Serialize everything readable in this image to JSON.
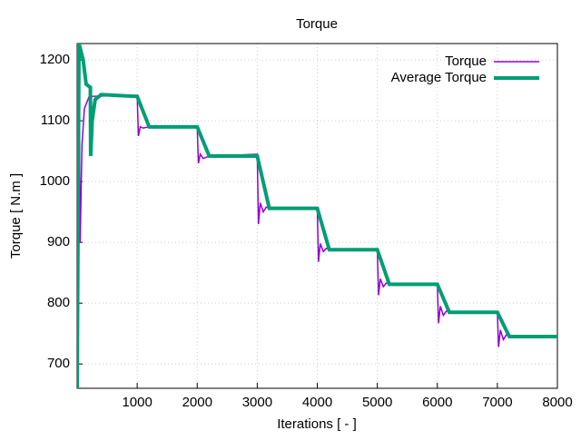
{
  "chart_data": {
    "type": "line",
    "title": "Torque",
    "x_label": "Iterations [ - ]",
    "y_label": "Torque [ N.m ]",
    "xlim": [
      0,
      8000
    ],
    "ylim": [
      660,
      1227
    ],
    "xticks": [
      1000,
      2000,
      3000,
      4000,
      5000,
      6000,
      7000,
      8000
    ],
    "yticks": [
      700,
      800,
      900,
      1000,
      1100,
      1200
    ],
    "grid": true,
    "legend": "top-right",
    "series": [
      {
        "name": "Torque",
        "color": "#9400d3",
        "width": 1.5,
        "x": [
          0,
          30,
          50,
          80,
          120,
          200,
          1000,
          1020,
          1050,
          1100,
          1200,
          2000,
          2020,
          2050,
          2100,
          2200,
          3000,
          3020,
          3050,
          3100,
          3150,
          3300,
          4000,
          4020,
          4050,
          4100,
          4150,
          4300,
          5000,
          5020,
          5050,
          5100,
          5150,
          5300,
          6000,
          6020,
          6050,
          6100,
          6150,
          6300,
          7000,
          7020,
          7050,
          7100,
          7150,
          7300,
          8000
        ],
        "values": [
          660,
          1227,
          900,
          1060,
          1120,
          1140,
          1142,
          1075,
          1090,
          1088,
          1090,
          1090,
          1030,
          1045,
          1038,
          1042,
          1045,
          930,
          965,
          950,
          958,
          956,
          956,
          868,
          898,
          885,
          890,
          888,
          888,
          813,
          840,
          827,
          833,
          831,
          831,
          767,
          795,
          780,
          787,
          785,
          785,
          728,
          756,
          740,
          748,
          745,
          745
        ]
      },
      {
        "name": "Average Torque",
        "color": "#009e73",
        "width": 4,
        "x": [
          0,
          30,
          100,
          150,
          220,
          225,
          250,
          300,
          400,
          1000,
          1200,
          2000,
          2200,
          3000,
          3200,
          4000,
          4200,
          5000,
          5200,
          6000,
          6200,
          7000,
          7200,
          8000
        ],
        "values": [
          660,
          1227,
          1200,
          1160,
          1155,
          1042,
          1100,
          1135,
          1143,
          1140,
          1090,
          1090,
          1042,
          1042,
          956,
          956,
          888,
          888,
          831,
          831,
          785,
          785,
          745,
          745
        ]
      }
    ]
  }
}
